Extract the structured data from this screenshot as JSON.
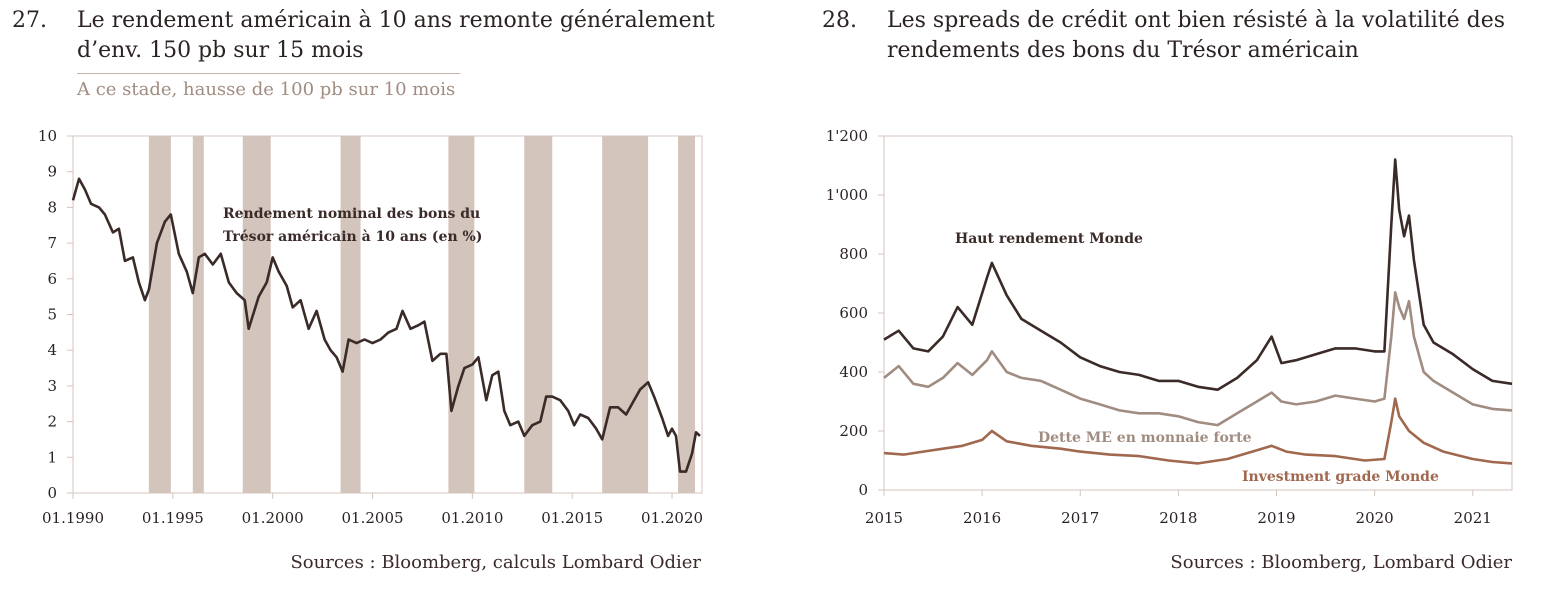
{
  "panel1": {
    "number": "27.",
    "title_line1": "Le rendement américain à 10 ans remonte généralement",
    "title_line2": "d’env. 150 pb sur 15 mois",
    "subtitle": "A ce stade, hausse de 100 pb sur 10 mois",
    "source": "Sources : Bloomberg, calculs Lombard Odier"
  },
  "panel2": {
    "number": "28.",
    "title_line1": "Les spreads de crédit ont bien résisté à la volatilité des",
    "title_line2": "rendements des bons du Trésor américain",
    "source": "Sources : Bloomberg, Lombard Odier"
  },
  "colors": {
    "line_dark": "#3a2a28",
    "line_mid": "#a08c80",
    "line_copper": "#a0684e",
    "shade": "#d3c4bc",
    "axis": "#d3c4bc"
  },
  "chart_data": [
    {
      "type": "line",
      "xlim": [
        1990.0,
        2021.5
      ],
      "ylim": [
        0,
        10
      ],
      "yticks": [
        "0",
        "1",
        "2",
        "3",
        "4",
        "5",
        "6",
        "7",
        "8",
        "9",
        "10"
      ],
      "xticks": [
        {
          "x": 1990,
          "label": "01.1990"
        },
        {
          "x": 1995,
          "label": "01.1995"
        },
        {
          "x": 2000,
          "label": "01.2000"
        },
        {
          "x": 2005,
          "label": "01.2005"
        },
        {
          "x": 2010,
          "label": "01.2010"
        },
        {
          "x": 2015,
          "label": "01.2015"
        },
        {
          "x": 2020,
          "label": "01.2020"
        }
      ],
      "shaded_periods": [
        [
          1993.8,
          1994.9
        ],
        [
          1996.0,
          1996.55
        ],
        [
          1998.5,
          1999.9
        ],
        [
          2003.4,
          2004.4
        ],
        [
          2008.8,
          2010.1
        ],
        [
          2012.6,
          2014.0
        ],
        [
          2016.5,
          2018.8
        ],
        [
          2020.3,
          2021.15
        ]
      ],
      "annotation_line1": "Rendement nominal des bons du",
      "annotation_line2": "Trésor américain à 10 ans (en %)",
      "series": [
        {
          "x": [
            1990.0,
            1990.3,
            1990.6,
            1990.9,
            1991.3,
            1991.6,
            1992.0,
            1992.3,
            1992.6,
            1993.0,
            1993.3,
            1993.6,
            1993.8,
            1994.2,
            1994.6,
            1994.9,
            1995.3,
            1995.7,
            1996.0,
            1996.3,
            1996.6,
            1997.0,
            1997.4,
            1997.8,
            1998.2,
            1998.6,
            1998.8,
            1999.3,
            1999.7,
            2000.0,
            2000.3,
            2000.7,
            2001.0,
            2001.4,
            2001.8,
            2002.2,
            2002.6,
            2002.9,
            2003.2,
            2003.5,
            2003.8,
            2004.2,
            2004.6,
            2005.0,
            2005.4,
            2005.8,
            2006.2,
            2006.5,
            2006.9,
            2007.3,
            2007.6,
            2008.0,
            2008.4,
            2008.7,
            2008.95,
            2009.3,
            2009.6,
            2010.0,
            2010.3,
            2010.7,
            2011.0,
            2011.3,
            2011.6,
            2011.9,
            2012.3,
            2012.6,
            2013.0,
            2013.4,
            2013.7,
            2014.0,
            2014.4,
            2014.8,
            2015.1,
            2015.4,
            2015.8,
            2016.2,
            2016.5,
            2016.9,
            2017.3,
            2017.7,
            2018.0,
            2018.4,
            2018.8,
            2019.1,
            2019.5,
            2019.8,
            2020.0,
            2020.2,
            2020.4,
            2020.7,
            2021.0,
            2021.2,
            2021.4
          ],
          "y": [
            8.2,
            8.8,
            8.5,
            8.1,
            8.0,
            7.8,
            7.3,
            7.4,
            6.5,
            6.6,
            5.9,
            5.4,
            5.7,
            7.0,
            7.6,
            7.8,
            6.7,
            6.2,
            5.6,
            6.6,
            6.7,
            6.4,
            6.7,
            5.9,
            5.6,
            5.4,
            4.6,
            5.5,
            5.9,
            6.6,
            6.2,
            5.8,
            5.2,
            5.4,
            4.6,
            5.1,
            4.3,
            4.0,
            3.8,
            3.4,
            4.3,
            4.2,
            4.3,
            4.2,
            4.3,
            4.5,
            4.6,
            5.1,
            4.6,
            4.7,
            4.8,
            3.7,
            3.9,
            3.9,
            2.3,
            3.0,
            3.5,
            3.6,
            3.8,
            2.6,
            3.3,
            3.4,
            2.3,
            1.9,
            2.0,
            1.6,
            1.9,
            2.0,
            2.7,
            2.7,
            2.6,
            2.3,
            1.9,
            2.2,
            2.1,
            1.8,
            1.5,
            2.4,
            2.4,
            2.2,
            2.5,
            2.9,
            3.1,
            2.7,
            2.1,
            1.6,
            1.8,
            1.6,
            0.6,
            0.6,
            1.1,
            1.7,
            1.6
          ]
        }
      ]
    },
    {
      "type": "line",
      "xlim": [
        2015.0,
        2021.4
      ],
      "ylim": [
        0,
        1200
      ],
      "yticks": [
        "0",
        "200",
        "400",
        "600",
        "800",
        "1'000",
        "1'200"
      ],
      "xticks": [
        {
          "x": 2015,
          "label": "2015"
        },
        {
          "x": 2016,
          "label": "2016"
        },
        {
          "x": 2017,
          "label": "2017"
        },
        {
          "x": 2018,
          "label": "2018"
        },
        {
          "x": 2019,
          "label": "2019"
        },
        {
          "x": 2020,
          "label": "2020"
        },
        {
          "x": 2021,
          "label": "2021"
        }
      ],
      "series": [
        {
          "name": "Haut rendement Monde",
          "x": [
            2015.0,
            2015.15,
            2015.3,
            2015.45,
            2015.6,
            2015.75,
            2015.9,
            2016.05,
            2016.1,
            2016.25,
            2016.4,
            2016.6,
            2016.8,
            2017.0,
            2017.2,
            2017.4,
            2017.6,
            2017.8,
            2018.0,
            2018.2,
            2018.4,
            2018.6,
            2018.8,
            2018.95,
            2019.05,
            2019.2,
            2019.4,
            2019.6,
            2019.8,
            2020.0,
            2020.1,
            2020.17,
            2020.21,
            2020.25,
            2020.3,
            2020.35,
            2020.4,
            2020.5,
            2020.6,
            2020.8,
            2021.0,
            2021.2,
            2021.4
          ],
          "y": [
            510,
            540,
            480,
            470,
            520,
            620,
            560,
            720,
            770,
            660,
            580,
            540,
            500,
            450,
            420,
            400,
            390,
            370,
            370,
            350,
            340,
            380,
            440,
            520,
            430,
            440,
            460,
            480,
            480,
            470,
            470,
            900,
            1120,
            950,
            860,
            930,
            780,
            560,
            500,
            460,
            410,
            370,
            360
          ]
        },
        {
          "name": "Dette ME en monnaie forte",
          "x": [
            2015.0,
            2015.15,
            2015.3,
            2015.45,
            2015.6,
            2015.75,
            2015.9,
            2016.05,
            2016.1,
            2016.25,
            2016.4,
            2016.6,
            2016.8,
            2017.0,
            2017.2,
            2017.4,
            2017.6,
            2017.8,
            2018.0,
            2018.2,
            2018.4,
            2018.6,
            2018.8,
            2018.95,
            2019.05,
            2019.2,
            2019.4,
            2019.6,
            2019.8,
            2020.0,
            2020.1,
            2020.17,
            2020.21,
            2020.25,
            2020.3,
            2020.35,
            2020.4,
            2020.5,
            2020.6,
            2020.8,
            2021.0,
            2021.2,
            2021.4
          ],
          "y": [
            380,
            420,
            360,
            350,
            380,
            430,
            390,
            440,
            470,
            400,
            380,
            370,
            340,
            310,
            290,
            270,
            260,
            260,
            250,
            230,
            220,
            260,
            300,
            330,
            300,
            290,
            300,
            320,
            310,
            300,
            310,
            520,
            670,
            620,
            580,
            640,
            520,
            400,
            370,
            330,
            290,
            275,
            270
          ]
        },
        {
          "name": "Investment grade Monde",
          "x": [
            2015.0,
            2015.2,
            2015.4,
            2015.6,
            2015.8,
            2016.0,
            2016.1,
            2016.25,
            2016.5,
            2016.8,
            2017.0,
            2017.3,
            2017.6,
            2017.9,
            2018.2,
            2018.5,
            2018.8,
            2018.95,
            2019.1,
            2019.3,
            2019.6,
            2019.9,
            2020.1,
            2020.17,
            2020.21,
            2020.25,
            2020.35,
            2020.5,
            2020.7,
            2021.0,
            2021.2,
            2021.4
          ],
          "y": [
            125,
            120,
            130,
            140,
            150,
            170,
            200,
            165,
            150,
            140,
            130,
            120,
            115,
            100,
            90,
            105,
            135,
            150,
            130,
            120,
            115,
            100,
            105,
            230,
            310,
            250,
            200,
            160,
            130,
            105,
            95,
            90
          ]
        }
      ],
      "label_positions_note": ""
    }
  ]
}
